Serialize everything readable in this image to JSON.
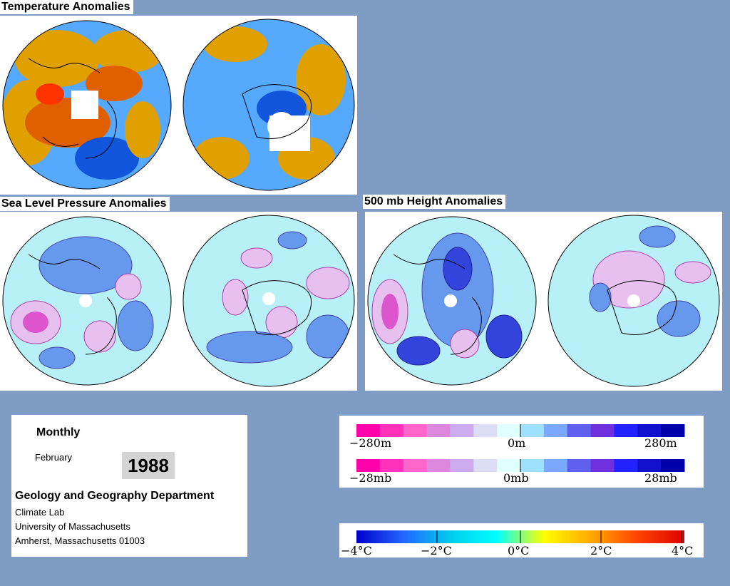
{
  "titles": {
    "temperature": "Temperature Anomalies",
    "slp": "Sea Level Pressure Anomalies",
    "height": "500 mb Height Anomalies"
  },
  "info": {
    "period": "Monthly",
    "month": "February",
    "year": "1988",
    "dept": "Geology and Geography Department",
    "line1": "Climate Lab",
    "line2": "University of Massachusetts",
    "line3": "Amherst, Massachusetts 01003"
  },
  "legend_height": {
    "labels": [
      "−280m",
      "0m",
      "280m"
    ],
    "colors": [
      "#ff00aa",
      "#ff33bb",
      "#ff66cc",
      "#dd88dd",
      "#ccaaee",
      "#ddddf8",
      "#e0ffff",
      "#a0e0ff",
      "#7aa8ff",
      "#6060ee",
      "#7030dd",
      "#2222ff",
      "#1111cc",
      "#0000aa"
    ]
  },
  "legend_pressure": {
    "labels": [
      "−28mb",
      "0mb",
      "28mb"
    ],
    "colors": [
      "#ff00aa",
      "#ff33bb",
      "#ff66cc",
      "#dd88dd",
      "#ccaaee",
      "#ddddf8",
      "#e0ffff",
      "#a0e0ff",
      "#7aa8ff",
      "#6060ee",
      "#7030dd",
      "#2222ff",
      "#1111cc",
      "#0000aa"
    ]
  },
  "legend_temperature": {
    "labels": [
      "−4°C",
      "−2°C",
      "0°C",
      "2°C",
      "4°C"
    ],
    "gradient": [
      "#0000cc",
      "#2266ff",
      "#00ccee",
      "#00ffff",
      "#ffff00",
      "#ffaa00",
      "#ff4400",
      "#dd0000"
    ]
  },
  "palette": {
    "temp_bg": "#e0a000",
    "temp_warm": "#e06000",
    "temp_cool": "#55aaff",
    "temp_cold": "#1155dd",
    "press_bg": "#b8f0f8",
    "press_neg": "#6699ee",
    "press_neg2": "#3344dd",
    "press_pos": "#e8c0f0",
    "press_pos2": "#dd55cc"
  }
}
